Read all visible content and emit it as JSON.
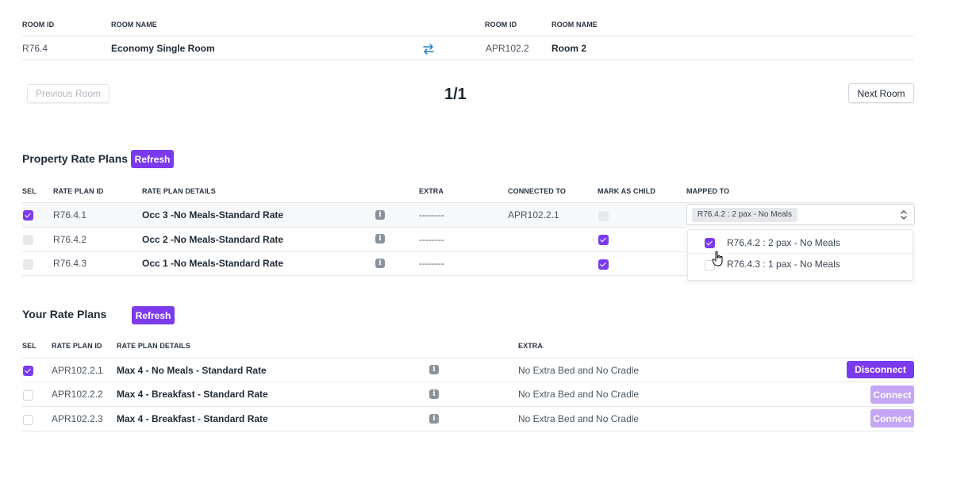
{
  "room_header": {
    "left_col_id": "ROOM ID",
    "left_col_name": "ROOM NAME",
    "right_col_id": "ROOM ID",
    "right_col_name": "ROOM NAME",
    "left_room_id": "R76.4",
    "left_room_name": "Economy Single Room",
    "right_room_id": "APR102.2",
    "right_room_name": "Room 2",
    "swap_icon": "swap-arrows-icon"
  },
  "pagination": {
    "prev_label": "Previous Room",
    "page_indicator": "1/1",
    "next_label": "Next Room"
  },
  "property_rate_plans": {
    "title": "Property Rate Plans",
    "refresh_label": "Refresh",
    "columns": [
      "SEL",
      "RATE PLAN ID",
      "RATE PLAN DETAILS",
      "EXTRA",
      "CONNECTED TO",
      "MARK AS CHILD",
      "MAPPED TO"
    ],
    "rows": [
      {
        "selected": true,
        "id": "R76.4.1",
        "details": "Occ 3  -No Meals-Standard Rate",
        "extra": "--------",
        "connected_to": "APR102.2.1",
        "mark_as_child": false
      },
      {
        "selected": false,
        "id": "R76.4.2",
        "details": "Occ 2  -No Meals-Standard Rate",
        "extra": "--------",
        "connected_to": "",
        "mark_as_child": true
      },
      {
        "selected": false,
        "id": "R76.4.3",
        "details": "Occ 1 -No Meals-Standard Rate",
        "extra": "--------",
        "connected_to": "",
        "mark_as_child": true
      }
    ],
    "mapped_to": {
      "selected_tag": "R76.4.2 : 2 pax - No Meals",
      "options": [
        {
          "label": "R76.4.2 : 2 pax - No Meals",
          "checked": true
        },
        {
          "label": "R76.4.3 : 1 pax - No Meals",
          "checked": false
        }
      ]
    }
  },
  "your_rate_plans": {
    "title": "Your Rate Plans",
    "refresh_label": "Refresh",
    "columns": [
      "SEL",
      "RATE PLAN ID",
      "RATE PLAN DETAILS",
      "EXTRA"
    ],
    "rows": [
      {
        "selected": true,
        "id": "APR102.2.1",
        "details": "Max 4 - No Meals - Standard Rate",
        "extra": "No Extra Bed and No Cradle",
        "action": "Disconnect"
      },
      {
        "selected": false,
        "id": "APR102.2.2",
        "details": "Max 4 - Breakfast - Standard Rate",
        "extra": "No Extra Bed and No Cradle",
        "action": "Connect"
      },
      {
        "selected": false,
        "id": "APR102.2.3",
        "details": "Max 4 - Breakfast - Standard Rate",
        "extra": "No Extra Bed and No Cradle",
        "action": "Connect"
      }
    ]
  },
  "colors": {
    "accent": "#7c3aed",
    "accent_light": "#c4a6f5",
    "border": "#e4e7eb"
  }
}
